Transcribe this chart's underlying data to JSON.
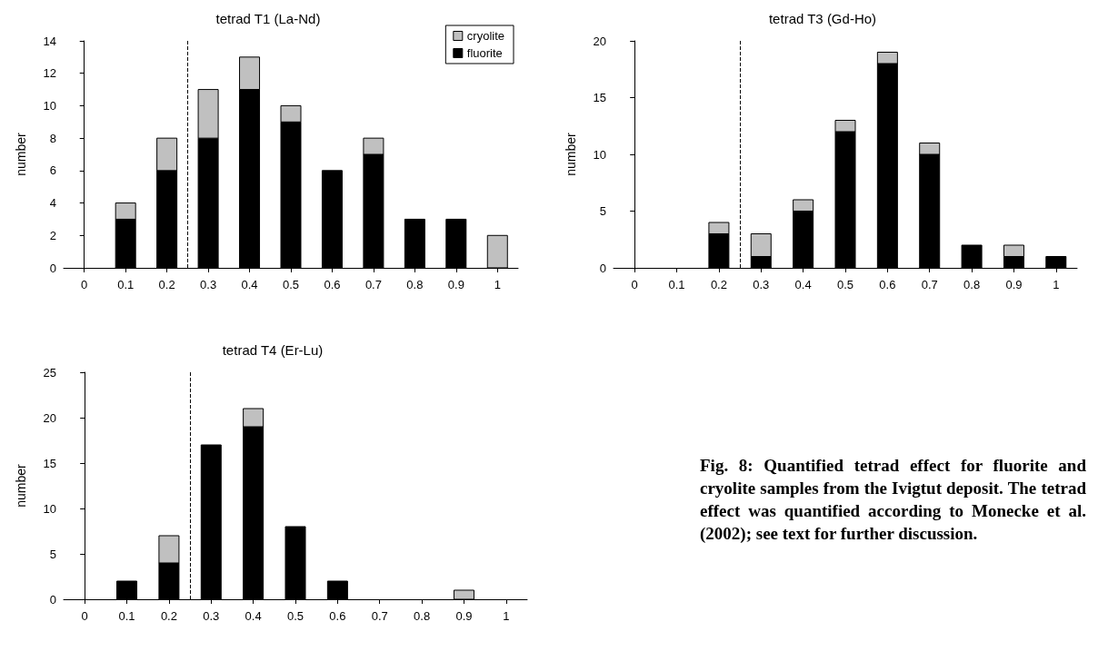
{
  "chart_data": [
    {
      "type": "bar",
      "title": "tetrad T1 (La-Nd)",
      "ylabel": "number",
      "stacked": true,
      "legend": "top right",
      "grid": false,
      "x": [
        0,
        0.1,
        0.2,
        0.3,
        0.4,
        0.5,
        0.6,
        0.7,
        0.8,
        0.9,
        1
      ],
      "xlim": [
        -0.05,
        1.05
      ],
      "xticks": [
        0,
        0.1,
        0.2,
        0.3,
        0.4,
        0.5,
        0.6,
        0.7,
        0.8,
        0.9,
        1
      ],
      "ylim": [
        0,
        14
      ],
      "yticks": [
        0,
        2,
        4,
        6,
        8,
        10,
        12,
        14
      ],
      "ref_lines": [
        {
          "axis": "x",
          "value": 0.25,
          "line_style": "dashed",
          "color": "#000000"
        }
      ],
      "series": [
        {
          "name": "fluorite",
          "color": "#000000",
          "values": [
            0,
            3,
            6,
            8,
            11,
            9,
            6,
            7,
            3,
            3,
            0
          ]
        },
        {
          "name": "cryolite",
          "color": "#c0c0c0",
          "values": [
            0,
            1,
            2,
            3,
            2,
            1,
            0,
            1,
            0,
            0,
            2
          ]
        }
      ]
    },
    {
      "type": "bar",
      "title": "tetrad T3 (Gd-Ho)",
      "ylabel": "number",
      "stacked": true,
      "grid": false,
      "x": [
        0,
        0.1,
        0.2,
        0.3,
        0.4,
        0.5,
        0.6,
        0.7,
        0.8,
        0.9,
        1
      ],
      "xlim": [
        -0.05,
        1.05
      ],
      "xticks": [
        0,
        0.1,
        0.2,
        0.3,
        0.4,
        0.5,
        0.6,
        0.7,
        0.8,
        0.9,
        1
      ],
      "ylim": [
        0,
        20
      ],
      "yticks": [
        0,
        5,
        10,
        15,
        20
      ],
      "ref_lines": [
        {
          "axis": "x",
          "value": 0.25,
          "line_style": "dashed",
          "color": "#000000"
        }
      ],
      "series": [
        {
          "color": "#000000",
          "values": [
            0,
            0,
            3,
            1,
            5,
            12,
            18,
            10,
            2,
            1,
            1
          ]
        },
        {
          "color": "#c0c0c0",
          "values": [
            0,
            0,
            1,
            2,
            1,
            1,
            1,
            1,
            0,
            1,
            0
          ]
        }
      ]
    },
    {
      "type": "bar",
      "title": "tetrad T4 (Er-Lu)",
      "ylabel": "number",
      "stacked": true,
      "grid": false,
      "x": [
        0,
        0.1,
        0.2,
        0.3,
        0.4,
        0.5,
        0.6,
        0.7,
        0.8,
        0.9,
        1
      ],
      "xlim": [
        -0.05,
        1.05
      ],
      "xticks": [
        0,
        0.1,
        0.2,
        0.3,
        0.4,
        0.5,
        0.6,
        0.7,
        0.8,
        0.9,
        1
      ],
      "ylim": [
        0,
        25
      ],
      "yticks": [
        0,
        5,
        10,
        15,
        20,
        25
      ],
      "ref_lines": [
        {
          "axis": "x",
          "value": 0.25,
          "line_style": "dashed",
          "color": "#000000"
        }
      ],
      "series": [
        {
          "color": "#000000",
          "values": [
            0,
            2,
            4,
            17,
            19,
            8,
            2,
            0,
            0,
            0,
            0
          ]
        },
        {
          "color": "#c0c0c0",
          "values": [
            0,
            0,
            3,
            0,
            2,
            0,
            0,
            0,
            0,
            1,
            0
          ]
        }
      ],
      "annotations": [
        "Fig. 8: Quantified tetrad effect for fluorite and cryolite samples from the Ivigtut deposit. The tetrad effect was quantified according to Monecke et al. (2002); see text for further discussion."
      ]
    }
  ]
}
